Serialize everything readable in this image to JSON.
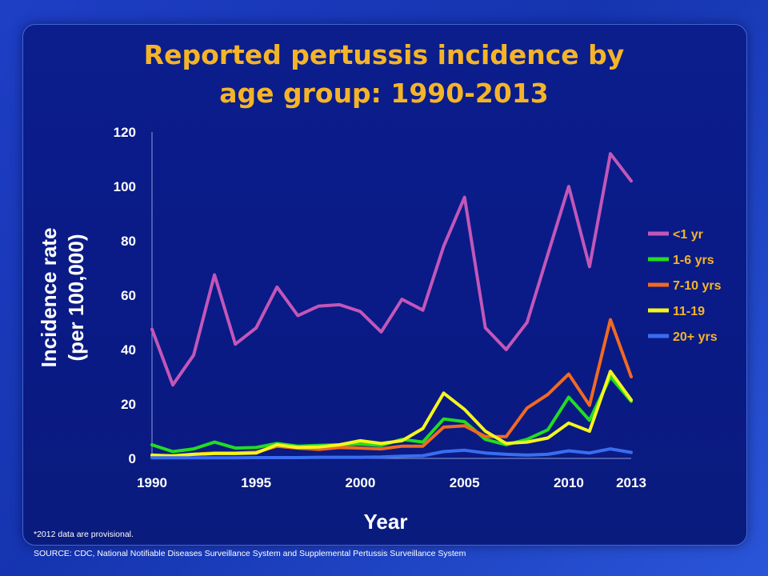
{
  "slide": {
    "title_lines": [
      "Reported pertussis incidence by",
      "age group: 1990-2013"
    ],
    "footnote": "*2012 data are provisional.",
    "source": "SOURCE:  CDC, National Notifiable Diseases Surveillance System and Supplemental Pertussis Surveillance System",
    "colors": {
      "background": "#0b1e8c",
      "title": "#f5b428",
      "legend_text": "#f5b428",
      "axis_text": "#ffffff"
    }
  },
  "chart_data": {
    "type": "line",
    "title": "Reported pertussis incidence by age group: 1990-2013",
    "xlabel": "Year",
    "ylabel_lines": [
      "Incidence rate",
      "(per 100,000)"
    ],
    "xlim": [
      1990,
      2013
    ],
    "ylim": [
      0,
      120
    ],
    "x_ticks": [
      1990,
      1995,
      2000,
      2005,
      2010,
      2013
    ],
    "y_ticks": [
      0,
      20,
      40,
      60,
      80,
      100,
      120
    ],
    "grid": false,
    "legend_position": "right",
    "x": [
      1990,
      1991,
      1992,
      1993,
      1994,
      1995,
      1996,
      1997,
      1998,
      1999,
      2000,
      2001,
      2002,
      2003,
      2004,
      2005,
      2006,
      2007,
      2008,
      2009,
      2010,
      2011,
      2012,
      2013
    ],
    "series": [
      {
        "name": "<1 yr",
        "color": "#c257b8",
        "values": [
          47.5,
          27,
          38,
          67.5,
          42,
          48,
          63,
          52.5,
          56,
          56.5,
          54,
          46.5,
          58.5,
          54.5,
          78,
          96,
          48,
          40,
          50,
          75,
          100,
          70.5,
          112,
          102
        ]
      },
      {
        "name": "1-6 yrs",
        "color": "#22dd22",
        "values": [
          5,
          2.5,
          3.5,
          6,
          3.8,
          4,
          5.5,
          4.5,
          4.8,
          5,
          5.3,
          4.8,
          7,
          6,
          14.5,
          13.5,
          7,
          5,
          7,
          10.5,
          22.5,
          14,
          30,
          21
        ]
      },
      {
        "name": "7-10 yrs",
        "color": "#f26a21",
        "values": [
          1,
          1,
          1.5,
          2,
          2,
          2.3,
          4.5,
          3.8,
          3.3,
          4,
          3.8,
          3.5,
          4.5,
          4.5,
          11.5,
          12,
          8,
          8,
          18.5,
          23.5,
          31,
          19.5,
          51,
          30
        ]
      },
      {
        "name": "11-19",
        "color": "#f5f51e",
        "values": [
          1.2,
          0.9,
          1.5,
          1.8,
          1.8,
          2,
          5,
          4,
          4.2,
          5,
          6.5,
          5.5,
          6.5,
          11,
          24,
          18,
          10,
          5.5,
          6,
          7.5,
          13,
          10,
          32,
          21.5
        ]
      },
      {
        "name": "20+ yrs",
        "color": "#3a6df0",
        "values": [
          0.2,
          0.2,
          0.2,
          0.2,
          0.2,
          0.3,
          0.3,
          0.3,
          0.4,
          0.4,
          0.4,
          0.5,
          0.8,
          1,
          2.5,
          3,
          2,
          1.5,
          1.2,
          1.5,
          2.8,
          2,
          3.5,
          2.2
        ]
      }
    ]
  }
}
